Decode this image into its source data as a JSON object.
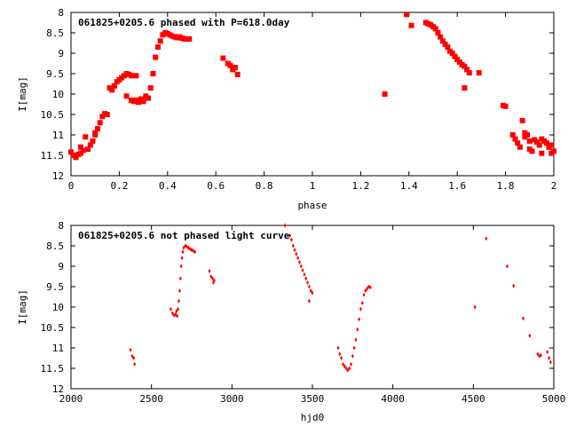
{
  "chart_data": [
    {
      "type": "scatter",
      "title": "061825+0205.6 phased with P=618.0day",
      "xlabel": "phase",
      "ylabel": "I[mag]",
      "xlim": [
        0,
        2
      ],
      "ylim": [
        12,
        8
      ],
      "y_inverted": true,
      "grid": false,
      "marker_color": "#ff0000",
      "marker": "filled-square",
      "xticks": [
        "0",
        "0.2",
        "0.4",
        "0.6",
        "0.8",
        "1",
        "1.2",
        "1.4",
        "1.6",
        "1.8",
        "2"
      ],
      "yticks": [
        "8",
        "8.5",
        "9",
        "9.5",
        "10",
        "10.5",
        "11",
        "11.5",
        "12"
      ],
      "points": [
        [
          0.0,
          11.42
        ],
        [
          0.01,
          11.5
        ],
        [
          0.02,
          11.55
        ],
        [
          0.03,
          11.48
        ],
        [
          0.04,
          11.45
        ],
        [
          0.04,
          11.3
        ],
        [
          0.05,
          11.38
        ],
        [
          0.06,
          11.05
        ],
        [
          0.07,
          11.35
        ],
        [
          0.08,
          11.25
        ],
        [
          0.09,
          11.15
        ],
        [
          0.1,
          11.0
        ],
        [
          0.1,
          10.95
        ],
        [
          0.11,
          10.85
        ],
        [
          0.12,
          10.7
        ],
        [
          0.13,
          10.55
        ],
        [
          0.14,
          10.48
        ],
        [
          0.15,
          10.5
        ],
        [
          0.16,
          9.85
        ],
        [
          0.17,
          9.9
        ],
        [
          0.18,
          9.8
        ],
        [
          0.19,
          9.7
        ],
        [
          0.2,
          9.65
        ],
        [
          0.21,
          9.6
        ],
        [
          0.22,
          9.55
        ],
        [
          0.23,
          10.05
        ],
        [
          0.23,
          9.5
        ],
        [
          0.24,
          9.52
        ],
        [
          0.25,
          9.55
        ],
        [
          0.25,
          10.15
        ],
        [
          0.26,
          10.18
        ],
        [
          0.27,
          10.15
        ],
        [
          0.27,
          9.55
        ],
        [
          0.28,
          10.2
        ],
        [
          0.29,
          10.12
        ],
        [
          0.3,
          10.18
        ],
        [
          0.31,
          10.05
        ],
        [
          0.32,
          10.1
        ],
        [
          0.33,
          9.85
        ],
        [
          0.34,
          9.5
        ],
        [
          0.35,
          9.1
        ],
        [
          0.36,
          8.85
        ],
        [
          0.37,
          8.7
        ],
        [
          0.38,
          8.55
        ],
        [
          0.39,
          8.5
        ],
        [
          0.4,
          8.52
        ],
        [
          0.41,
          8.55
        ],
        [
          0.42,
          8.58
        ],
        [
          0.43,
          8.6
        ],
        [
          0.44,
          8.62
        ],
        [
          0.45,
          8.6
        ],
        [
          0.46,
          8.63
        ],
        [
          0.47,
          8.65
        ],
        [
          0.49,
          8.65
        ],
        [
          0.63,
          9.12
        ],
        [
          0.65,
          9.25
        ],
        [
          0.66,
          9.3
        ],
        [
          0.67,
          9.4
        ],
        [
          0.68,
          9.35
        ],
        [
          0.69,
          9.52
        ],
        [
          1.3,
          10.0
        ],
        [
          1.39,
          8.05
        ],
        [
          1.41,
          8.32
        ],
        [
          1.47,
          8.25
        ],
        [
          1.48,
          8.28
        ],
        [
          1.49,
          8.3
        ],
        [
          1.5,
          8.35
        ],
        [
          1.51,
          8.4
        ],
        [
          1.52,
          8.5
        ],
        [
          1.53,
          8.6
        ],
        [
          1.54,
          8.7
        ],
        [
          1.55,
          8.78
        ],
        [
          1.56,
          8.85
        ],
        [
          1.57,
          8.95
        ],
        [
          1.58,
          9.0
        ],
        [
          1.59,
          9.08
        ],
        [
          1.6,
          9.15
        ],
        [
          1.61,
          9.22
        ],
        [
          1.62,
          9.28
        ],
        [
          1.63,
          9.32
        ],
        [
          1.64,
          9.4
        ],
        [
          1.65,
          9.48
        ],
        [
          1.63,
          9.85
        ],
        [
          1.69,
          9.48
        ],
        [
          1.79,
          10.28
        ],
        [
          1.8,
          10.3
        ],
        [
          1.83,
          11.0
        ],
        [
          1.84,
          11.1
        ],
        [
          1.85,
          11.2
        ],
        [
          1.86,
          11.3
        ],
        [
          1.87,
          10.65
        ],
        [
          1.88,
          11.05
        ],
        [
          1.88,
          10.95
        ],
        [
          1.89,
          11.0
        ],
        [
          1.9,
          11.15
        ],
        [
          1.9,
          11.35
        ],
        [
          1.91,
          11.4
        ],
        [
          1.92,
          11.12
        ],
        [
          1.93,
          11.18
        ],
        [
          1.94,
          11.25
        ],
        [
          1.95,
          11.45
        ],
        [
          1.95,
          11.1
        ],
        [
          1.96,
          11.15
        ],
        [
          1.97,
          11.2
        ],
        [
          1.98,
          11.3
        ],
        [
          1.99,
          11.25
        ],
        [
          1.99,
          11.45
        ],
        [
          2.0,
          11.4
        ]
      ]
    },
    {
      "type": "scatter",
      "title": "061825+0205.6 not phased light curve",
      "xlabel": "hjd0",
      "ylabel": "I[mag]",
      "xlim": [
        2000,
        5000
      ],
      "ylim": [
        12,
        8
      ],
      "y_inverted": true,
      "grid": false,
      "marker_color": "#ff0000",
      "marker": "small-diamond",
      "xticks": [
        "2000",
        "2500",
        "3000",
        "3500",
        "4000",
        "4500",
        "5000"
      ],
      "yticks": [
        "8",
        "8.5",
        "9",
        "9.5",
        "10",
        "10.5",
        "11",
        "11.5",
        "12"
      ],
      "points": [
        [
          2370,
          11.05
        ],
        [
          2380,
          11.2
        ],
        [
          2390,
          11.25
        ],
        [
          2395,
          11.4
        ],
        [
          2620,
          10.05
        ],
        [
          2630,
          10.15
        ],
        [
          2640,
          10.2
        ],
        [
          2650,
          10.18
        ],
        [
          2655,
          10.1
        ],
        [
          2660,
          10.22
        ],
        [
          2665,
          10.05
        ],
        [
          2670,
          9.85
        ],
        [
          2675,
          9.6
        ],
        [
          2680,
          9.3
        ],
        [
          2685,
          9.0
        ],
        [
          2690,
          8.8
        ],
        [
          2695,
          8.65
        ],
        [
          2700,
          8.55
        ],
        [
          2710,
          8.5
        ],
        [
          2720,
          8.52
        ],
        [
          2730,
          8.55
        ],
        [
          2740,
          8.58
        ],
        [
          2750,
          8.6
        ],
        [
          2760,
          8.62
        ],
        [
          2770,
          8.65
        ],
        [
          2860,
          9.12
        ],
        [
          2870,
          9.25
        ],
        [
          2880,
          9.3
        ],
        [
          2885,
          9.4
        ],
        [
          2890,
          9.35
        ],
        [
          3330,
          8.0
        ],
        [
          3360,
          8.25
        ],
        [
          3370,
          8.35
        ],
        [
          3380,
          8.5
        ],
        [
          3390,
          8.6
        ],
        [
          3400,
          8.7
        ],
        [
          3410,
          8.8
        ],
        [
          3420,
          8.9
        ],
        [
          3430,
          9.0
        ],
        [
          3440,
          9.1
        ],
        [
          3450,
          9.2
        ],
        [
          3460,
          9.3
        ],
        [
          3470,
          9.4
        ],
        [
          3480,
          9.5
        ],
        [
          3490,
          9.6
        ],
        [
          3500,
          9.65
        ],
        [
          3480,
          9.85
        ],
        [
          3660,
          11.0
        ],
        [
          3670,
          11.15
        ],
        [
          3680,
          11.25
        ],
        [
          3690,
          11.4
        ],
        [
          3700,
          11.45
        ],
        [
          3710,
          11.5
        ],
        [
          3720,
          11.55
        ],
        [
          3730,
          11.5
        ],
        [
          3740,
          11.4
        ],
        [
          3750,
          11.2
        ],
        [
          3760,
          11.0
        ],
        [
          3770,
          10.8
        ],
        [
          3780,
          10.55
        ],
        [
          3790,
          10.3
        ],
        [
          3800,
          10.05
        ],
        [
          3810,
          9.9
        ],
        [
          3820,
          9.7
        ],
        [
          3830,
          9.6
        ],
        [
          3840,
          9.55
        ],
        [
          3850,
          9.5
        ],
        [
          3860,
          9.52
        ],
        [
          4510,
          10.0
        ],
        [
          4580,
          8.32
        ],
        [
          4710,
          9.0
        ],
        [
          4750,
          9.48
        ],
        [
          4810,
          10.28
        ],
        [
          4850,
          10.7
        ],
        [
          4900,
          11.15
        ],
        [
          4910,
          11.2
        ],
        [
          4920,
          11.18
        ],
        [
          4960,
          11.1
        ],
        [
          4970,
          11.25
        ],
        [
          4980,
          11.35
        ]
      ]
    }
  ]
}
